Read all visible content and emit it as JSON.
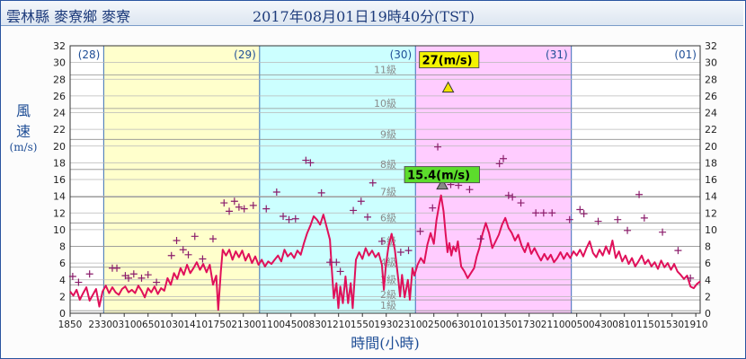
{
  "header": {
    "station": "雲林縣 麥寮鄉 麥寮",
    "datetime": "2017年08月01日19時40分(TST)"
  },
  "chart_data": {
    "type": "line",
    "ylabel_chars": [
      "風",
      "速"
    ],
    "ylabel_unit": "(m/s)",
    "xlabel": "時間(小時)",
    "ylim": [
      0,
      32
    ],
    "yticks": [
      0,
      2,
      4,
      6,
      8,
      10,
      12,
      14,
      16,
      18,
      20,
      22,
      24,
      26,
      28,
      30,
      32
    ],
    "x_hours": [
      0,
      97
    ],
    "xticks": [
      {
        "h": 0,
        "label": "1850"
      },
      {
        "h": 4.67,
        "label": "2330"
      },
      {
        "h": 8.33,
        "label": "0310"
      },
      {
        "h": 12,
        "label": "0650"
      },
      {
        "h": 15.67,
        "label": "1030"
      },
      {
        "h": 19.33,
        "label": "1410"
      },
      {
        "h": 23,
        "label": "1750"
      },
      {
        "h": 26.67,
        "label": "2130"
      },
      {
        "h": 30.33,
        "label": "0110"
      },
      {
        "h": 34,
        "label": "0450"
      },
      {
        "h": 37.67,
        "label": "0830"
      },
      {
        "h": 41.33,
        "label": "1210"
      },
      {
        "h": 45,
        "label": "1550"
      },
      {
        "h": 48.67,
        "label": "1930"
      },
      {
        "h": 52.33,
        "label": "2310"
      },
      {
        "h": 56,
        "label": "0250"
      },
      {
        "h": 59.67,
        "label": "0630"
      },
      {
        "h": 63.33,
        "label": "1010"
      },
      {
        "h": 67,
        "label": "1350"
      },
      {
        "h": 70.67,
        "label": "1730"
      },
      {
        "h": 74.33,
        "label": "2110"
      },
      {
        "h": 78,
        "label": "0050"
      },
      {
        "h": 81.67,
        "label": "0430"
      },
      {
        "h": 85.33,
        "label": "0810"
      },
      {
        "h": 89,
        "label": "1150"
      },
      {
        "h": 92.67,
        "label": "1530"
      },
      {
        "h": 96.33,
        "label": "1910"
      }
    ],
    "days": [
      {
        "label": "(28)",
        "start": 0,
        "end": 5.17,
        "color": "#ffffff"
      },
      {
        "label": "(29)",
        "start": 5.17,
        "end": 29.17,
        "color": "#ffffcc"
      },
      {
        "label": "(30)",
        "start": 29.17,
        "end": 53.17,
        "color": "#ccffff"
      },
      {
        "label": "(31)",
        "start": 53.17,
        "end": 77.17,
        "color": "#ffccff"
      },
      {
        "label": "(01)",
        "start": 77.17,
        "end": 97,
        "color": "#ffffff"
      }
    ],
    "beaufort": [
      {
        "label": "1級",
        "v": 0.3
      },
      {
        "label": "2級",
        "v": 1.6
      },
      {
        "label": "3級",
        "v": 3.4
      },
      {
        "label": "4級",
        "v": 5.5
      },
      {
        "label": "5級",
        "v": 8.0
      },
      {
        "label": "6級",
        "v": 10.8
      },
      {
        "label": "7級",
        "v": 13.9
      },
      {
        "label": "8級",
        "v": 17.2
      },
      {
        "label": "9級",
        "v": 20.8
      },
      {
        "label": "10級",
        "v": 24.5
      },
      {
        "label": "11級",
        "v": 28.5
      }
    ],
    "series": [
      {
        "kind": "mean-wind",
        "color": "#e0105a",
        "points": [
          [
            0,
            2.6
          ],
          [
            0.5,
            2.1
          ],
          [
            1,
            2.8
          ],
          [
            1.5,
            1.6
          ],
          [
            2,
            2.4
          ],
          [
            2.5,
            3.1
          ],
          [
            3,
            1.5
          ],
          [
            3.5,
            2.2
          ],
          [
            4,
            2.9
          ],
          [
            4.5,
            0.8
          ],
          [
            5,
            2.6
          ],
          [
            5.5,
            3.3
          ],
          [
            6,
            2.4
          ],
          [
            6.5,
            3.1
          ],
          [
            7,
            2.5
          ],
          [
            7.5,
            2.2
          ],
          [
            8,
            2.9
          ],
          [
            8.5,
            3.2
          ],
          [
            9,
            2.5
          ],
          [
            9.5,
            2.8
          ],
          [
            10,
            2.4
          ],
          [
            10.5,
            3.3
          ],
          [
            11,
            2.7
          ],
          [
            11.5,
            1.9
          ],
          [
            12,
            3.0
          ],
          [
            12.5,
            2.5
          ],
          [
            13,
            3.2
          ],
          [
            13.5,
            2.3
          ],
          [
            14,
            3.0
          ],
          [
            14.5,
            2.7
          ],
          [
            15,
            4.2
          ],
          [
            15.5,
            3.4
          ],
          [
            16,
            4.8
          ],
          [
            16.5,
            4.1
          ],
          [
            17,
            5.4
          ],
          [
            17.5,
            4.6
          ],
          [
            18,
            5.8
          ],
          [
            18.5,
            4.8
          ],
          [
            19,
            5.4
          ],
          [
            19.5,
            6.1
          ],
          [
            20,
            5.2
          ],
          [
            20.5,
            5.9
          ],
          [
            21,
            4.9
          ],
          [
            21.5,
            5.8
          ],
          [
            22,
            3.4
          ],
          [
            22.5,
            4.5
          ],
          [
            22.8,
            0.4
          ],
          [
            23.2,
            5.0
          ],
          [
            23.5,
            7.6
          ],
          [
            24,
            6.9
          ],
          [
            24.5,
            7.6
          ],
          [
            25,
            6.4
          ],
          [
            25.5,
            7.4
          ],
          [
            26,
            6.7
          ],
          [
            26.5,
            7.5
          ],
          [
            27,
            6.3
          ],
          [
            27.5,
            7.1
          ],
          [
            28,
            6.0
          ],
          [
            28.5,
            6.8
          ],
          [
            29,
            5.8
          ],
          [
            29.5,
            6.4
          ],
          [
            30,
            5.6
          ],
          [
            30.5,
            6.2
          ],
          [
            31,
            5.9
          ],
          [
            31.5,
            6.4
          ],
          [
            32,
            6.9
          ],
          [
            32.5,
            6.2
          ],
          [
            33,
            7.6
          ],
          [
            33.5,
            6.8
          ],
          [
            34,
            7.2
          ],
          [
            34.5,
            6.6
          ],
          [
            35,
            7.5
          ],
          [
            35.5,
            7.0
          ],
          [
            36,
            8.4
          ],
          [
            36.5,
            9.6
          ],
          [
            37,
            10.5
          ],
          [
            37.5,
            11.6
          ],
          [
            38,
            11.2
          ],
          [
            38.5,
            10.6
          ],
          [
            39,
            11.8
          ],
          [
            39.5,
            10.3
          ],
          [
            40,
            8.8
          ],
          [
            40.3,
            5.2
          ],
          [
            40.6,
            1.8
          ],
          [
            41,
            3.6
          ],
          [
            41.3,
            0.6
          ],
          [
            41.6,
            3.2
          ],
          [
            42,
            1.2
          ],
          [
            42.4,
            4.4
          ],
          [
            42.8,
            1.2
          ],
          [
            43.2,
            3.6
          ],
          [
            43.5,
            0.6
          ],
          [
            44,
            6.4
          ],
          [
            44.5,
            7.3
          ],
          [
            45,
            6.5
          ],
          [
            45.5,
            7.8
          ],
          [
            46,
            6.9
          ],
          [
            46.5,
            7.5
          ],
          [
            47,
            6.7
          ],
          [
            47.5,
            7.2
          ],
          [
            48,
            5.8
          ],
          [
            48.3,
            2.8
          ],
          [
            48.6,
            5.6
          ],
          [
            49,
            7.9
          ],
          [
            49.5,
            9.5
          ],
          [
            50,
            7.6
          ],
          [
            50.5,
            4.2
          ],
          [
            50.8,
            2.0
          ],
          [
            51.1,
            4.6
          ],
          [
            51.5,
            1.9
          ],
          [
            52,
            4.0
          ],
          [
            52.3,
            1.6
          ],
          [
            52.7,
            5.4
          ],
          [
            53,
            4.5
          ],
          [
            53.5,
            5.8
          ],
          [
            54,
            6.6
          ],
          [
            54.5,
            6.0
          ],
          [
            55,
            8.2
          ],
          [
            55.5,
            9.6
          ],
          [
            56,
            8.3
          ],
          [
            56.4,
            11.1
          ],
          [
            56.8,
            12.9
          ],
          [
            57.1,
            14.1
          ],
          [
            57.5,
            12.2
          ],
          [
            57.8,
            9.6
          ],
          [
            58.1,
            7.3
          ],
          [
            58.4,
            8.4
          ],
          [
            58.7,
            6.9
          ],
          [
            59,
            8.0
          ],
          [
            59.4,
            7.4
          ],
          [
            59.7,
            8.6
          ],
          [
            60.2,
            5.6
          ],
          [
            60.7,
            5.0
          ],
          [
            61.2,
            4.2
          ],
          [
            61.7,
            4.8
          ],
          [
            62.2,
            5.4
          ],
          [
            62.6,
            6.8
          ],
          [
            63,
            7.8
          ],
          [
            63.5,
            9.5
          ],
          [
            64,
            10.8
          ],
          [
            64.5,
            9.6
          ],
          [
            65,
            7.8
          ],
          [
            65.5,
            8.6
          ],
          [
            66,
            9.4
          ],
          [
            66.5,
            10.6
          ],
          [
            67,
            11.4
          ],
          [
            67.5,
            10.2
          ],
          [
            68,
            9.6
          ],
          [
            68.5,
            8.7
          ],
          [
            69,
            9.4
          ],
          [
            69.5,
            8.1
          ],
          [
            70,
            7.3
          ],
          [
            70.5,
            8.4
          ],
          [
            71,
            7.1
          ],
          [
            71.5,
            7.8
          ],
          [
            72,
            7.0
          ],
          [
            72.5,
            6.3
          ],
          [
            73,
            7.1
          ],
          [
            73.5,
            6.4
          ],
          [
            74,
            7.0
          ],
          [
            74.5,
            6.1
          ],
          [
            75,
            6.6
          ],
          [
            75.5,
            7.3
          ],
          [
            76,
            6.5
          ],
          [
            76.5,
            7.2
          ],
          [
            77,
            6.6
          ],
          [
            77.5,
            7.4
          ],
          [
            78,
            6.9
          ],
          [
            78.5,
            7.6
          ],
          [
            79,
            6.8
          ],
          [
            79.5,
            7.8
          ],
          [
            80,
            8.6
          ],
          [
            80.5,
            7.2
          ],
          [
            81,
            6.7
          ],
          [
            81.5,
            7.6
          ],
          [
            82,
            6.9
          ],
          [
            82.5,
            8.0
          ],
          [
            83,
            7.1
          ],
          [
            83.5,
            8.7
          ],
          [
            84,
            6.6
          ],
          [
            84.5,
            7.4
          ],
          [
            85,
            6.2
          ],
          [
            85.5,
            6.9
          ],
          [
            86,
            5.9
          ],
          [
            86.5,
            6.6
          ],
          [
            87,
            5.6
          ],
          [
            87.5,
            6.2
          ],
          [
            88,
            6.9
          ],
          [
            88.5,
            5.9
          ],
          [
            89,
            6.4
          ],
          [
            89.5,
            5.6
          ],
          [
            90,
            6.1
          ],
          [
            90.5,
            5.3
          ],
          [
            91,
            6.3
          ],
          [
            91.5,
            5.5
          ],
          [
            92,
            6.0
          ],
          [
            92.5,
            5.2
          ],
          [
            93,
            5.9
          ],
          [
            93.5,
            5.0
          ],
          [
            94,
            4.6
          ],
          [
            94.5,
            4.1
          ],
          [
            95,
            4.5
          ],
          [
            95.5,
            3.2
          ],
          [
            96,
            3.0
          ],
          [
            96.5,
            3.5
          ],
          [
            97,
            3.8
          ]
        ]
      },
      {
        "kind": "gust",
        "color": "#8b1d6b",
        "points": [
          [
            0.4,
            4.4
          ],
          [
            1.3,
            3.7
          ],
          [
            3.0,
            4.7
          ],
          [
            6.5,
            5.4
          ],
          [
            7.2,
            5.4
          ],
          [
            8.5,
            4.5
          ],
          [
            9.0,
            4.2
          ],
          [
            9.8,
            4.7
          ],
          [
            11.0,
            4.2
          ],
          [
            12.0,
            4.6
          ],
          [
            13.3,
            3.7
          ],
          [
            15.6,
            6.9
          ],
          [
            16.4,
            8.7
          ],
          [
            17.4,
            7.6
          ],
          [
            18.2,
            7.0
          ],
          [
            19.2,
            9.2
          ],
          [
            20.4,
            6.5
          ],
          [
            22.0,
            8.9
          ],
          [
            23.7,
            13.2
          ],
          [
            24.5,
            12.2
          ],
          [
            25.3,
            13.4
          ],
          [
            26.0,
            12.7
          ],
          [
            26.8,
            12.5
          ],
          [
            28.2,
            12.9
          ],
          [
            30.2,
            12.5
          ],
          [
            31.8,
            14.5
          ],
          [
            32.8,
            11.6
          ],
          [
            33.7,
            11.2
          ],
          [
            34.7,
            11.3
          ],
          [
            36.3,
            18.3
          ],
          [
            37.0,
            18.0
          ],
          [
            38.7,
            14.4
          ],
          [
            40.0,
            6.1
          ],
          [
            41.0,
            6.1
          ],
          [
            41.6,
            5.0
          ],
          [
            43.6,
            12.3
          ],
          [
            44.8,
            13.4
          ],
          [
            45.8,
            11.5
          ],
          [
            46.6,
            15.6
          ],
          [
            48.0,
            8.6
          ],
          [
            50.9,
            7.3
          ],
          [
            52.1,
            7.5
          ],
          [
            53.9,
            9.8
          ],
          [
            55.8,
            12.6
          ],
          [
            56.6,
            19.9
          ],
          [
            58.6,
            15.4
          ],
          [
            59.8,
            15.3
          ],
          [
            61.5,
            14.8
          ],
          [
            63.2,
            8.9
          ],
          [
            66.1,
            17.9
          ],
          [
            66.7,
            18.5
          ],
          [
            67.5,
            14.1
          ],
          [
            68.1,
            13.9
          ],
          [
            69.4,
            13.2
          ],
          [
            71.7,
            12.0
          ],
          [
            72.9,
            12.0
          ],
          [
            74.2,
            12.0
          ],
          [
            76.9,
            11.2
          ],
          [
            78.5,
            12.4
          ],
          [
            79.1,
            11.9
          ],
          [
            81.3,
            11.0
          ],
          [
            84.3,
            11.2
          ],
          [
            85.8,
            9.9
          ],
          [
            87.6,
            14.2
          ],
          [
            88.4,
            11.4
          ],
          [
            91.2,
            9.7
          ],
          [
            93.6,
            7.5
          ],
          [
            95.5,
            4.2
          ]
        ]
      }
    ],
    "annotations": [
      {
        "label": "27(m/s)",
        "h": 58.2,
        "v": 27.0,
        "box_color": "#f3f300",
        "marker_color": "#f3e600"
      },
      {
        "label": "15.4(m/s)",
        "h": 57.3,
        "v": 15.4,
        "box_color": "#5cdc2c",
        "marker_color": "#888888"
      }
    ]
  }
}
